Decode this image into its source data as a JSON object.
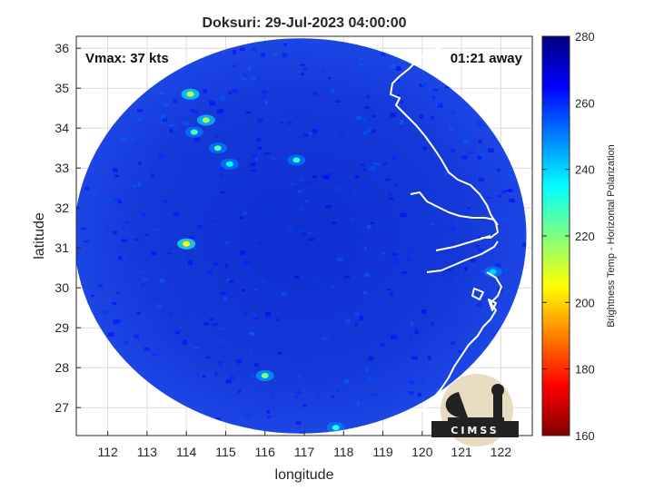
{
  "chart_data": {
    "type": "heatmap",
    "title": "Doksuri: 29-Jul-2023 04:00:00",
    "xlabel": "longitude",
    "ylabel": "latitude",
    "xlim": [
      111.2,
      122.8
    ],
    "ylim": [
      26.3,
      36.3
    ],
    "xticks": [
      112,
      113,
      114,
      115,
      116,
      117,
      118,
      119,
      120,
      121,
      122
    ],
    "yticks": [
      27,
      28,
      29,
      30,
      31,
      32,
      33,
      34,
      35,
      36
    ],
    "grid": true,
    "annotations": {
      "vmax": "Vmax: 37 kts",
      "away": "01:21 away"
    },
    "colorbar": {
      "label": "Brightness Temp - Horizontal Polarization",
      "range": [
        160,
        280
      ],
      "ticks": [
        160,
        180,
        200,
        220,
        240,
        260,
        280
      ],
      "colormap": "jet"
    },
    "swath": {
      "center": [
        116.9,
        31.3
      ],
      "radius_deg_lon": 5.75,
      "radius_deg_lat": 4.95
    },
    "warm_features": [
      {
        "lon": 114.0,
        "lat": 31.1,
        "tb": 205
      },
      {
        "lon": 114.1,
        "lat": 34.85,
        "tb": 212
      },
      {
        "lon": 114.5,
        "lat": 34.2,
        "tb": 215
      },
      {
        "lon": 114.8,
        "lat": 33.5,
        "tb": 225
      },
      {
        "lon": 116.0,
        "lat": 27.8,
        "tb": 220
      },
      {
        "lon": 116.8,
        "lat": 33.2,
        "tb": 230
      },
      {
        "lon": 117.8,
        "lat": 26.5,
        "tb": 232
      },
      {
        "lon": 121.8,
        "lat": 30.4,
        "tb": 240
      },
      {
        "lon": 114.2,
        "lat": 33.9,
        "tb": 226
      },
      {
        "lon": 115.1,
        "lat": 33.1,
        "tb": 235
      }
    ]
  },
  "logo": {
    "text": "CIMSS"
  },
  "colors": {
    "axis": "#262626",
    "grid": "#dcdcdc",
    "coast": "#ffffff"
  }
}
